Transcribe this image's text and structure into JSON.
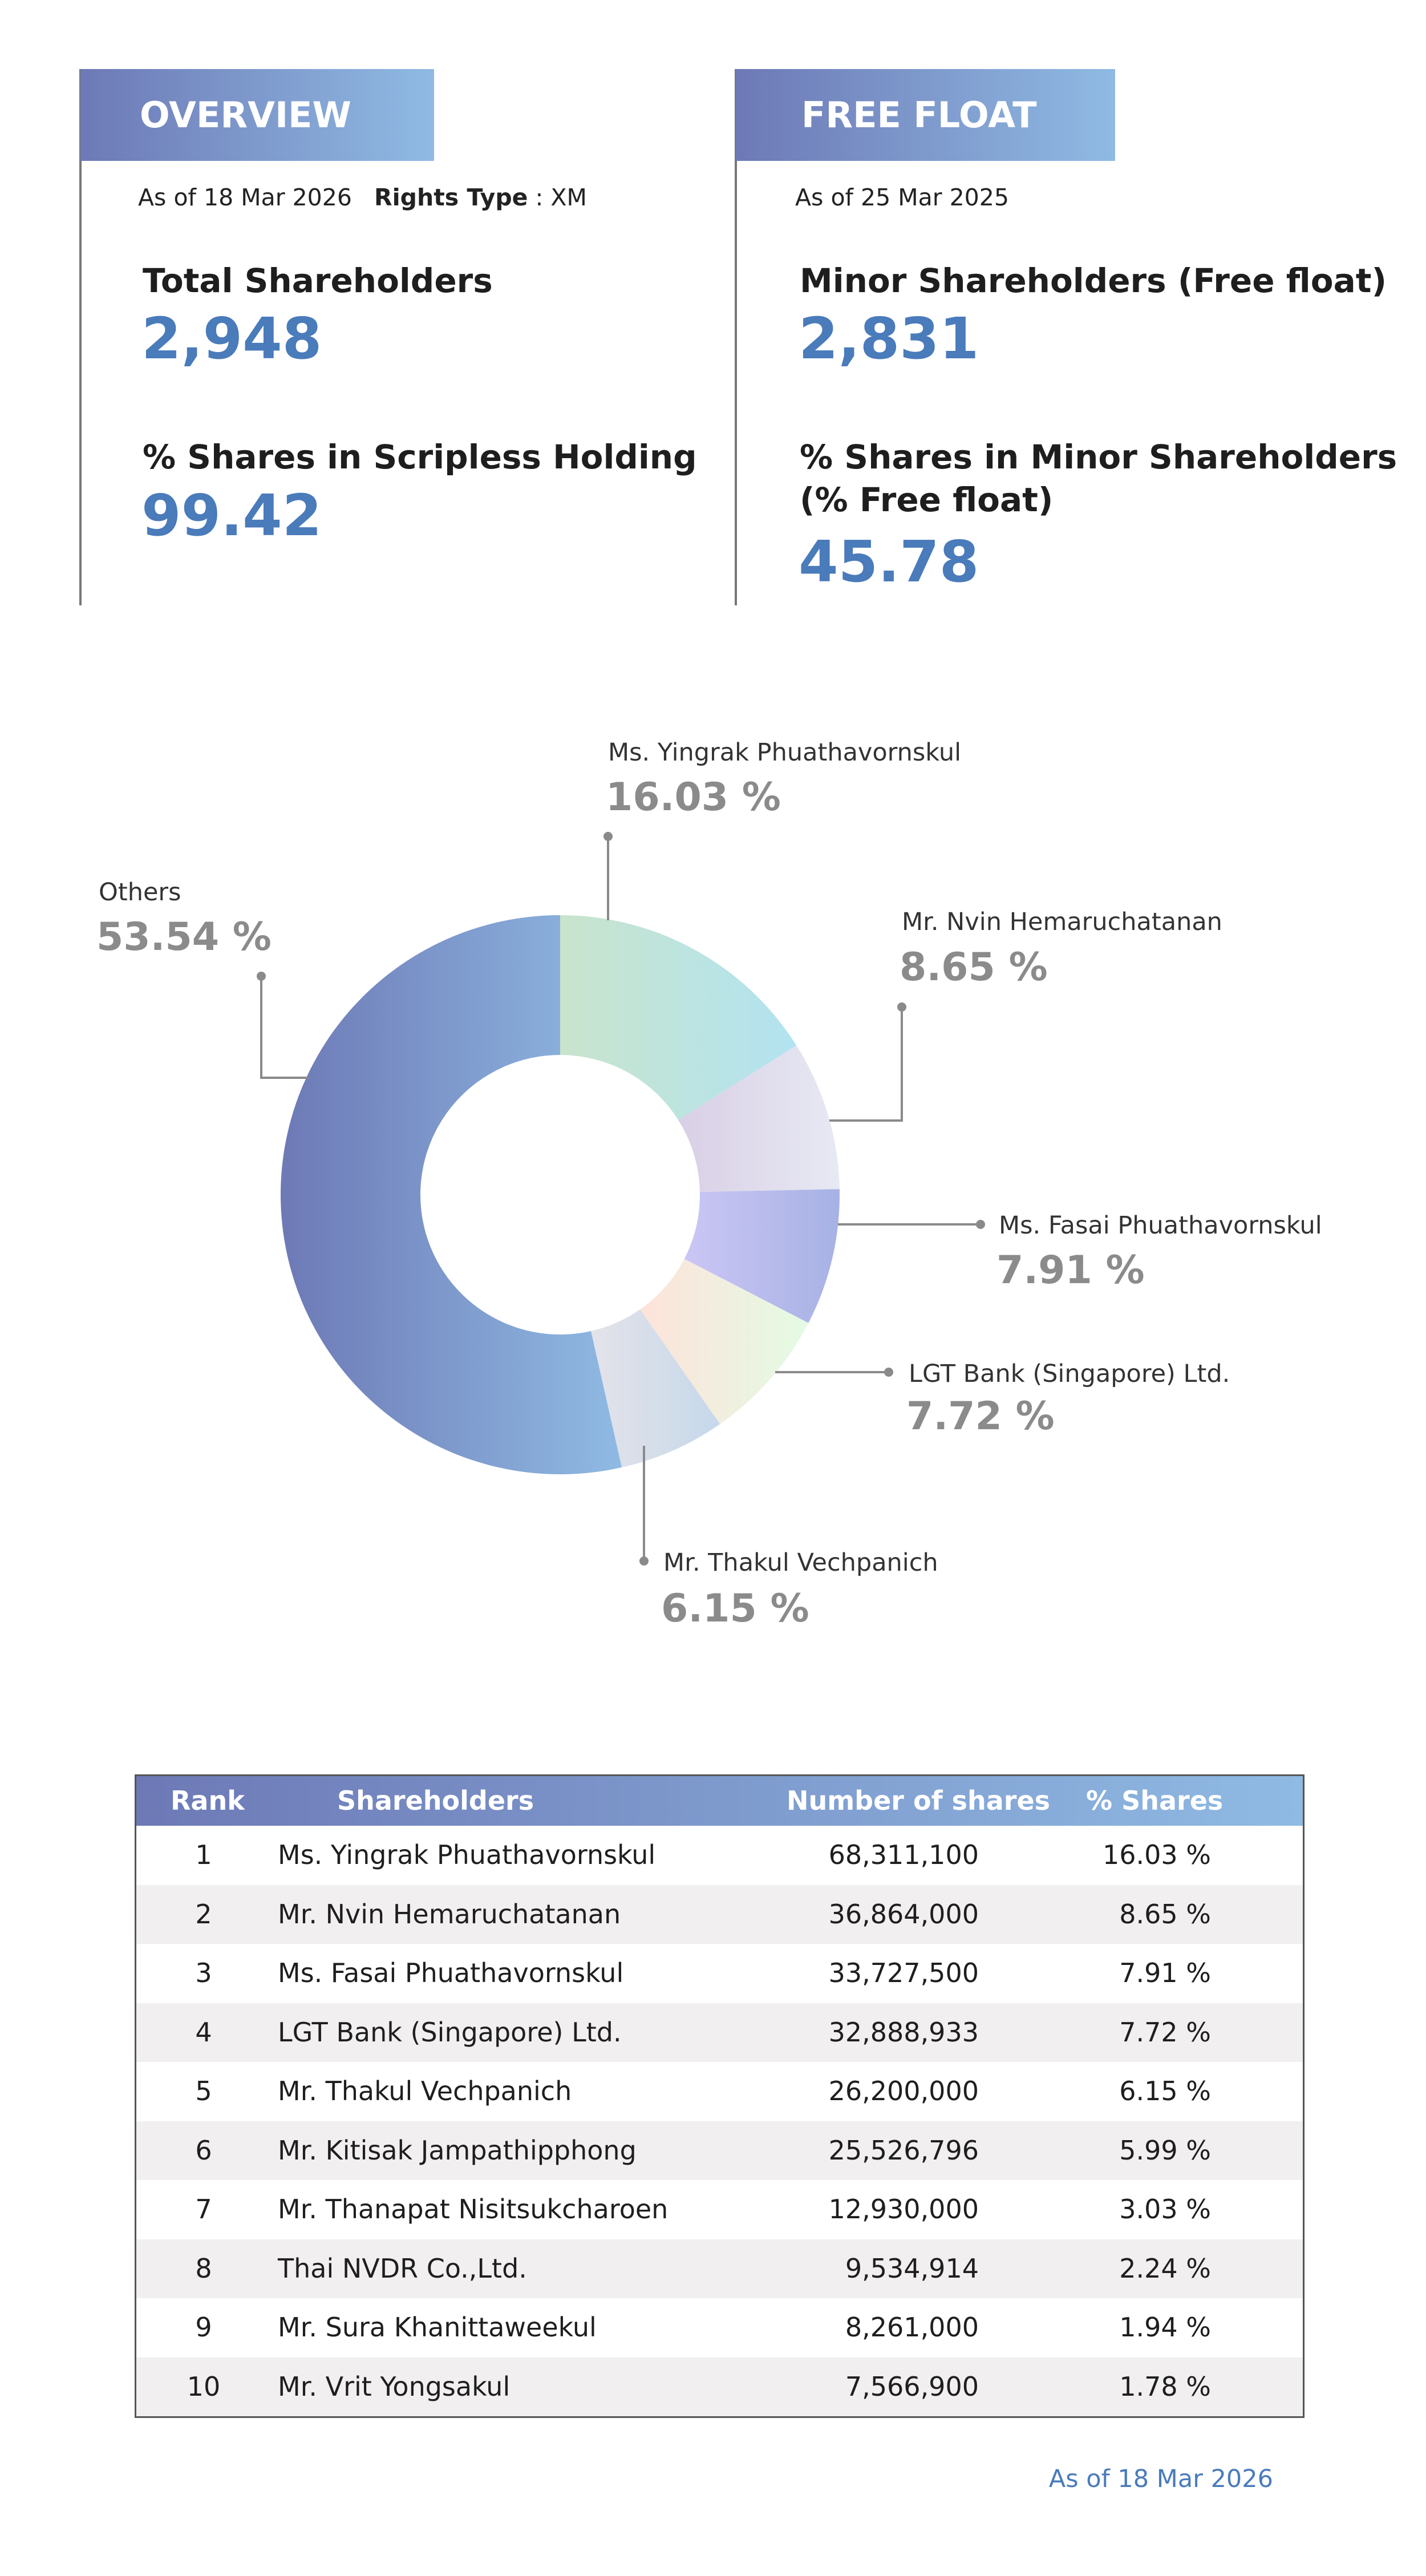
{
  "overview": {
    "title": "OVERVIEW",
    "as_of": "As of 18 Mar 2026",
    "rights_type_label": "Rights Type",
    "rights_type_value": ": XM",
    "total_shareholders_label": "Total Shareholders",
    "total_shareholders_value": "2,948",
    "scripless_label": "% Shares in Scripless Holding",
    "scripless_value": "99.42"
  },
  "free_float": {
    "title": "FREE FLOAT",
    "as_of": "As of 25 Mar 2025",
    "minor_label": "Minor Shareholders (Free float)",
    "minor_value": "2,831",
    "minor_pct_label_1": "% Shares in Minor Shareholders",
    "minor_pct_label_2": "(% Free float)",
    "minor_pct_value": "45.78"
  },
  "chart_data": {
    "type": "pie",
    "donut": true,
    "slices": [
      {
        "name": "Ms. Yingrak Phuathavornskul",
        "value": 16.03,
        "label": "16.03 %",
        "colors": [
          "#c9e4cc",
          "#b2e3f1"
        ]
      },
      {
        "name": "Mr. Nvin Hemaruchatanan",
        "value": 8.65,
        "label": "8.65 %",
        "colors": [
          "#d9cfe6",
          "#e7e9f3"
        ]
      },
      {
        "name": "Ms. Fasai Phuathavornskul",
        "value": 7.91,
        "label": "7.91 %",
        "colors": [
          "#cbc6f5",
          "#a6b2e4"
        ]
      },
      {
        "name": "LGT Bank (Singapore) Ltd.",
        "value": 7.72,
        "label": "7.72 %",
        "colors": [
          "#fde3da",
          "#e4fbe4"
        ]
      },
      {
        "name": "Mr. Thakul Vechpanich",
        "value": 6.15,
        "label": "6.15 %",
        "colors": [
          "#e4e3ea",
          "#c5d8ea"
        ]
      },
      {
        "name": "Others",
        "value": 53.54,
        "label": "53.54 %",
        "colors": [
          "#6d79b6",
          "#8fbae3"
        ]
      }
    ]
  },
  "table": {
    "headers": [
      "Rank",
      "Shareholders",
      "Number of shares",
      "% Shares"
    ],
    "rows": [
      [
        "1",
        "Ms. Yingrak Phuathavornskul",
        "68,311,100",
        "16.03 %"
      ],
      [
        "2",
        "Mr. Nvin Hemaruchatanan",
        "36,864,000",
        "8.65 %"
      ],
      [
        "3",
        "Ms. Fasai Phuathavornskul",
        "33,727,500",
        "7.91 %"
      ],
      [
        "4",
        "LGT Bank (Singapore) Ltd.",
        "32,888,933",
        "7.72 %"
      ],
      [
        "5",
        "Mr. Thakul Vechpanich",
        "26,200,000",
        "6.15 %"
      ],
      [
        "6",
        "Mr. Kitisak Jampathipphong",
        "25,526,796",
        "5.99 %"
      ],
      [
        "7",
        "Mr. Thanapat Nisitsukcharoen",
        "12,930,000",
        "3.03 %"
      ],
      [
        "8",
        "Thai NVDR Co.,Ltd.",
        "9,534,914",
        "2.24 %"
      ],
      [
        "9",
        "Mr. Sura Khanittaweekul",
        "8,261,000",
        "1.94 %"
      ],
      [
        "10",
        "Mr. Vrit Yongsakul",
        "7,566,900",
        "1.78 %"
      ]
    ],
    "footer": "As of 18 Mar 2026"
  }
}
